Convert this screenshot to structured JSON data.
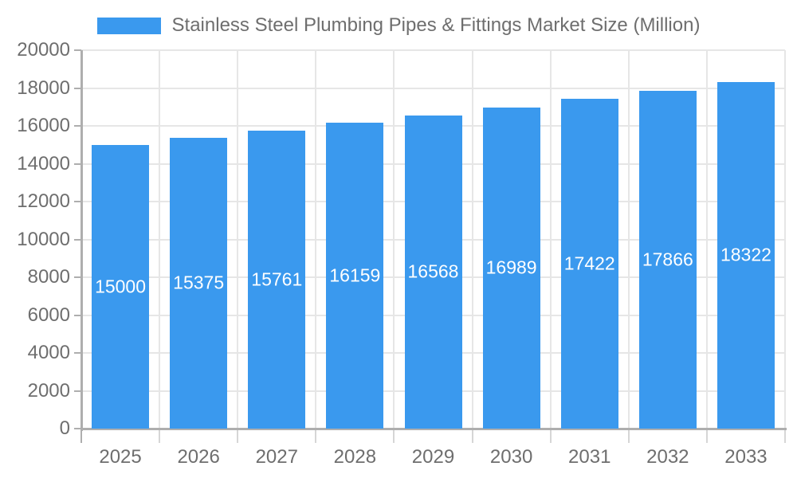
{
  "chart_data": {
    "type": "bar",
    "title": "Stainless Steel Plumbing Pipes & Fittings Market Size (Million)",
    "categories": [
      "2025",
      "2026",
      "2027",
      "2028",
      "2029",
      "2030",
      "2031",
      "2032",
      "2033"
    ],
    "values": [
      15000,
      15375,
      15761,
      16159,
      16568,
      16989,
      17422,
      17866,
      18322
    ],
    "xlabel": "",
    "ylabel": "",
    "ylim": [
      0,
      20000
    ],
    "ytick_step": 2000,
    "y_tick_labels": [
      "0",
      "2000",
      "4000",
      "6000",
      "8000",
      "10000",
      "12000",
      "14000",
      "16000",
      "18000",
      "20000"
    ],
    "grid": true,
    "legend_position": "top-center",
    "value_labels_shown": true,
    "colors": {
      "bar": "#3a99ee",
      "axis_text": "#6e6e6e",
      "value_label_text": "#ffffff",
      "gridline": "#e6e6e6",
      "axis_line": "#aeaeae",
      "tick_below_axis": "#d6d6d6",
      "background": "#ffffff"
    }
  }
}
